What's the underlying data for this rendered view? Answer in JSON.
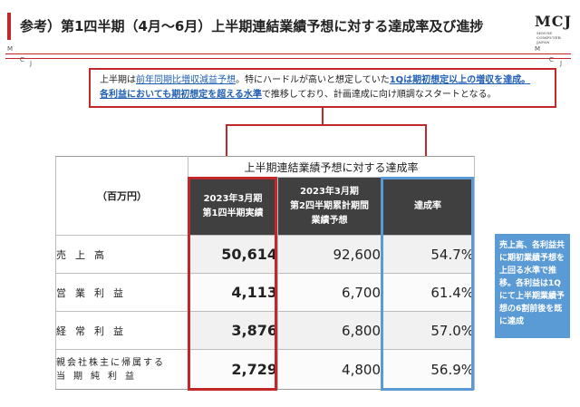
{
  "header": {
    "title": "参考）第1四半期（4月～6月）上半期連結業績予想に対する達成率及び進捗",
    "logo": "MCJ",
    "logo_sub": "MOUSE COMPUTER JAPAN",
    "rule_letters": [
      "M",
      "C",
      "J",
      "M",
      "C",
      "J"
    ]
  },
  "note": {
    "t1": "上半期は",
    "t2": "前年同期比増収減益予想",
    "t3": "。特にハードルが高いと想定していた",
    "t4": "1Qは期初想定以上の増収を達成。",
    "t5": "各利益においても期初想定を超える水準",
    "t6": "で推移しており、計画達成に向け順調なスタートとなる。"
  },
  "table": {
    "super_header": "上半期連結業績予想に対する達成率",
    "unit_label": "（百万円）",
    "col_actual": [
      "2023年3月期",
      "第1四半期実績"
    ],
    "col_forecast": [
      "2023年3月期",
      "第2四半期累計期間",
      "業績予想"
    ],
    "col_rate": "達成率",
    "rows": [
      {
        "label": "売上高",
        "actual": "50,614",
        "forecast": "92,600",
        "rate": "54.7%"
      },
      {
        "label": "営業利益",
        "actual": "4,113",
        "forecast": "6,700",
        "rate": "61.4%"
      },
      {
        "label": "経常利益",
        "actual": "3,876",
        "forecast": "6,800",
        "rate": "57.0%"
      },
      {
        "label_lines": [
          "親会社株主に帰属する",
          "当期純利益"
        ],
        "actual": "2,729",
        "forecast": "4,800",
        "rate": "56.9%"
      }
    ]
  },
  "callout": "売上高、各利益共に期初業績予想を上回る水準で推移。各利益は1Qにて上半期業績予想の6割前後を既に達成",
  "colors": {
    "accent_red": "#c0282a",
    "accent_blue": "#5b9bd5",
    "header_dark": "#404040",
    "link_blue": "#1f5fb5"
  }
}
